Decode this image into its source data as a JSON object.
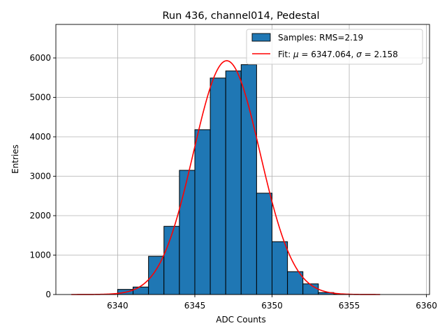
{
  "chart_data": {
    "type": "bar",
    "title": "Run 436, channel014, Pedestal",
    "xlabel": "ADC Counts",
    "ylabel": "Entries",
    "xlim": [
      6336,
      6360.2
    ],
    "ylim": [
      0,
      6850
    ],
    "grid": true,
    "legend_position": "top-right",
    "xticks": [
      6340,
      6345,
      6350,
      6355,
      6360
    ],
    "yticks": [
      0,
      1000,
      2000,
      3000,
      4000,
      5000,
      6000
    ],
    "bin_width": 1,
    "bins": [
      {
        "left": 6340,
        "count": 130
      },
      {
        "left": 6341,
        "count": 190
      },
      {
        "left": 6342,
        "count": 970
      },
      {
        "left": 6343,
        "count": 1730
      },
      {
        "left": 6344,
        "count": 3150
      },
      {
        "left": 6345,
        "count": 4180
      },
      {
        "left": 6346,
        "count": 5490
      },
      {
        "left": 6347,
        "count": 5670
      },
      {
        "left": 6348,
        "count": 5830
      },
      {
        "left": 6349,
        "count": 2570
      },
      {
        "left": 6350,
        "count": 1340
      },
      {
        "left": 6351,
        "count": 580
      },
      {
        "left": 6352,
        "count": 270
      },
      {
        "left": 6353,
        "count": 50
      },
      {
        "left": 6354,
        "count": 10
      }
    ],
    "fit": {
      "mu": 6347.064,
      "sigma": 2.158,
      "amplitude": 5930,
      "x_range": [
        6337,
        6357
      ]
    },
    "legend": [
      {
        "label": "Samples: RMS=2.19",
        "kind": "patch"
      },
      {
        "label_prefix": "Fit: ",
        "mu_symbol": "μ",
        "mu_text": " = 6347.064, ",
        "sigma_symbol": "σ",
        "sigma_text": " = 2.158",
        "kind": "line"
      }
    ],
    "colors": {
      "bar_fill": "#1f77b4",
      "bar_edge": "#000000",
      "fit_line": "#ff0000",
      "grid": "#b0b0b0"
    }
  }
}
